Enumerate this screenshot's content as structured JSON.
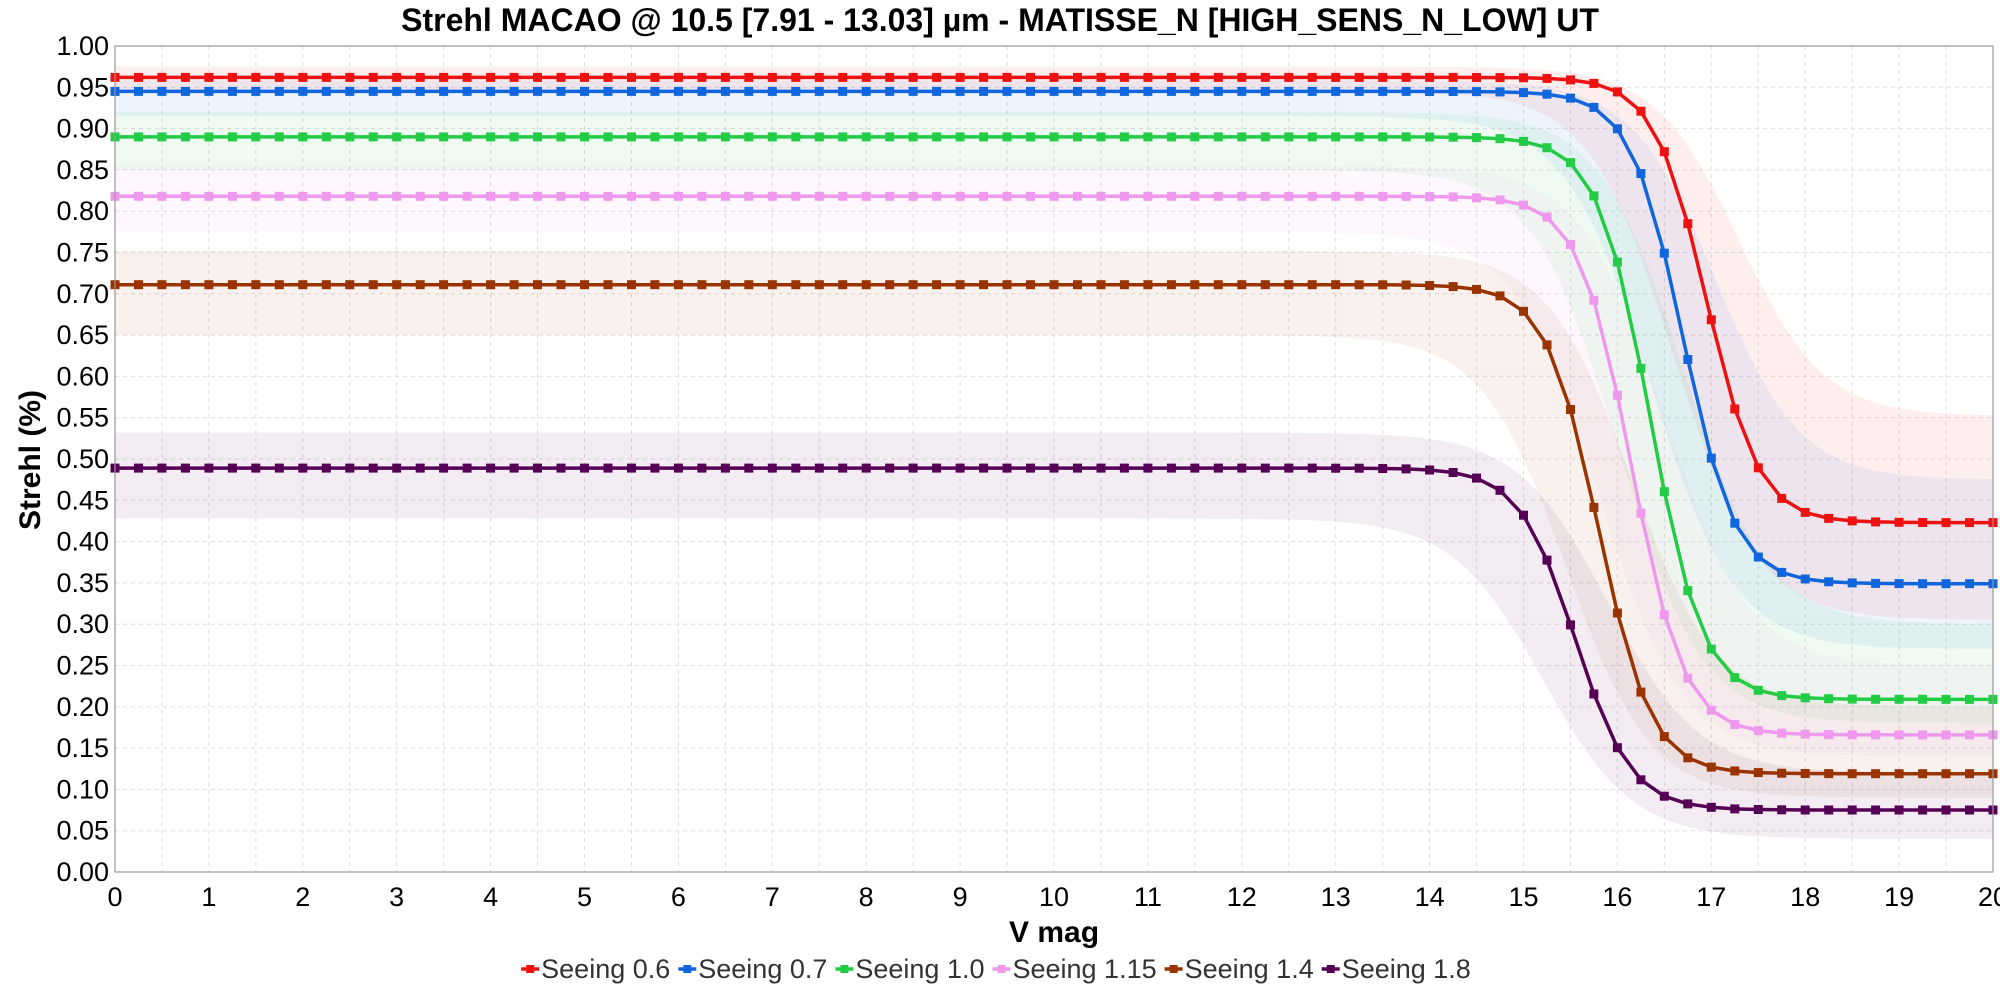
{
  "chart_data": {
    "type": "line",
    "title": "Strehl MACAO @ 10.5 [7.91 - 13.03] µm - MATISSE_N [HIGH_SENS_N_LOW] UT",
    "xlabel": "V mag",
    "ylabel": "Strehl (%)",
    "xlim": [
      0,
      20
    ],
    "ylim": [
      0,
      1.0
    ],
    "x_ticks": [
      "0",
      "1",
      "2",
      "3",
      "4",
      "5",
      "6",
      "7",
      "8",
      "9",
      "10",
      "11",
      "12",
      "13",
      "14",
      "15",
      "16",
      "17",
      "18",
      "19",
      "20"
    ],
    "y_ticks": [
      "0.00",
      "0.05",
      "0.10",
      "0.15",
      "0.20",
      "0.25",
      "0.30",
      "0.35",
      "0.40",
      "0.45",
      "0.50",
      "0.55",
      "0.60",
      "0.65",
      "0.70",
      "0.75",
      "0.80",
      "0.85",
      "0.90",
      "0.95",
      "1.00"
    ],
    "grid": true,
    "legend_position": "bottom-center",
    "x_step": 0.25,
    "series": [
      {
        "name": "Seeing 0.6",
        "color": "#ee1111",
        "plateau": 0.962,
        "floor": 0.423,
        "mid": 16.95,
        "width": 0.28,
        "band_high": 0.975,
        "band_low": 0.945,
        "band_floor_high": 0.552,
        "band_floor_low": 0.305
      },
      {
        "name": "Seeing 0.7",
        "color": "#1166dd",
        "plateau": 0.945,
        "floor": 0.349,
        "mid": 16.7,
        "width": 0.28,
        "band_high": 0.958,
        "band_low": 0.915,
        "band_floor_high": 0.475,
        "band_floor_low": 0.27
      },
      {
        "name": "Seeing 1.0",
        "color": "#22cc44",
        "plateau": 0.89,
        "floor": 0.209,
        "mid": 16.35,
        "width": 0.28,
        "band_high": 0.92,
        "band_low": 0.85,
        "band_floor_high": 0.3,
        "band_floor_low": 0.18
      },
      {
        "name": "Seeing 1.15",
        "color": "#ee99ee",
        "plateau": 0.818,
        "floor": 0.166,
        "mid": 16.15,
        "width": 0.28,
        "band_high": 0.855,
        "band_low": 0.775,
        "band_floor_high": 0.25,
        "band_floor_low": 0.14
      },
      {
        "name": "Seeing 1.4",
        "color": "#993300",
        "plateau": 0.711,
        "floor": 0.119,
        "mid": 15.8,
        "width": 0.28,
        "band_high": 0.752,
        "band_low": 0.65,
        "band_floor_high": 0.2,
        "band_floor_low": 0.09
      },
      {
        "name": "Seeing 1.8",
        "color": "#550055",
        "plateau": 0.489,
        "floor": 0.075,
        "mid": 15.55,
        "width": 0.3,
        "band_high": 0.532,
        "band_low": 0.428,
        "band_floor_high": 0.12,
        "band_floor_low": 0.04
      }
    ]
  }
}
